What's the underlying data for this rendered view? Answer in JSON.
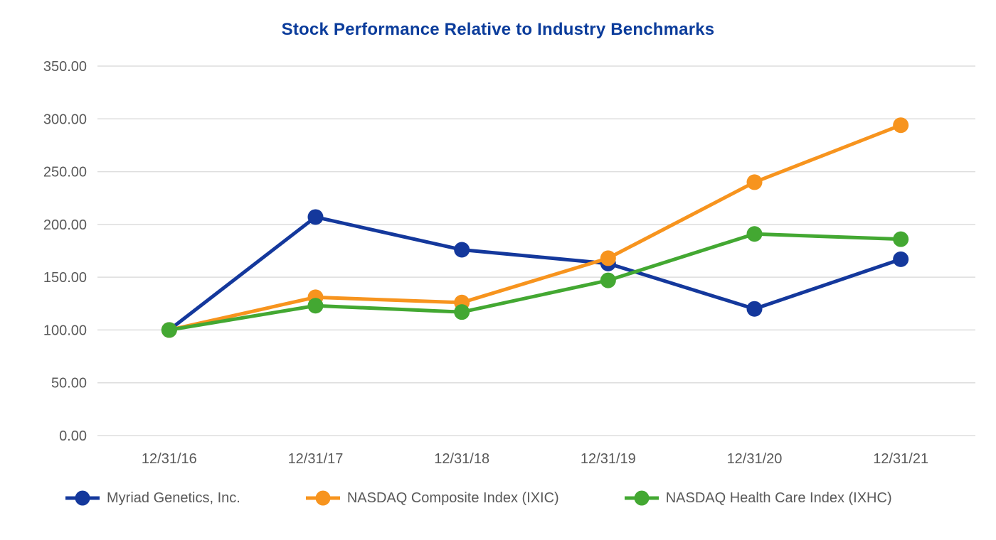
{
  "chart_data": {
    "type": "line",
    "title": "Stock Performance Relative to Industry Benchmarks",
    "categories": [
      "12/31/16",
      "12/31/17",
      "12/31/18",
      "12/31/19",
      "12/31/20",
      "12/31/21"
    ],
    "series": [
      {
        "name": "Myriad Genetics, Inc.",
        "color": "#14389C",
        "values": [
          100,
          207,
          176,
          163,
          120,
          167
        ]
      },
      {
        "name": "NASDAQ Composite Index (IXIC)",
        "color": "#F7941E",
        "values": [
          100,
          131,
          126,
          168,
          240,
          294
        ]
      },
      {
        "name": "NASDAQ Health Care Index (IXHC)",
        "color": "#43A832",
        "values": [
          100,
          123,
          117,
          147,
          191,
          186
        ]
      }
    ],
    "xlabel": "",
    "ylabel": "",
    "ylim": [
      0,
      350
    ],
    "ytick_step": 50,
    "ytick_labels": [
      "0.00",
      "50.00",
      "100.00",
      "150.00",
      "200.00",
      "250.00",
      "300.00",
      "350.00"
    ],
    "grid": true,
    "legend_position": "bottom",
    "marker": "circle"
  },
  "colors": {
    "title": "#0B3C9B",
    "axis_labels": "#595959",
    "legend_text": "#595959",
    "gridlines": "#DDDDDD",
    "background": "#FFFFFF"
  }
}
